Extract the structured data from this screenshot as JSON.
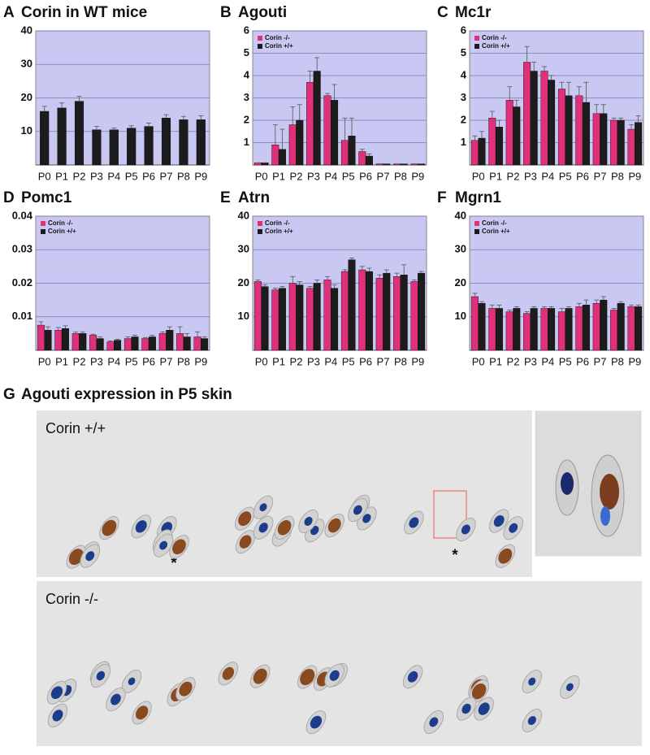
{
  "chart_data": [
    {
      "type": "bar",
      "panel": "A",
      "title": "Corin in WT mice",
      "categories": [
        "P0",
        "P1",
        "P2",
        "P3",
        "P4",
        "P5",
        "P6",
        "P7",
        "P8",
        "P9"
      ],
      "series": [
        {
          "color": "#1c1c1c",
          "values": [
            16,
            17,
            19,
            10.5,
            10.5,
            11,
            11.5,
            14,
            13.5,
            13.5
          ],
          "errors": [
            1.5,
            1.5,
            1.5,
            1,
            0.5,
            0.7,
            1,
            1,
            1,
            1.2
          ]
        }
      ],
      "ylim": [
        0,
        40
      ],
      "yticks": [
        10,
        20,
        30,
        40
      ],
      "grid": true
    },
    {
      "type": "bar",
      "panel": "B",
      "title": "Agouti",
      "categories": [
        "P0",
        "P1",
        "P2",
        "P3",
        "P4",
        "P5",
        "P6",
        "P7",
        "P8",
        "P9"
      ],
      "series": [
        {
          "name": "Corin -/-",
          "color": "#e0307a",
          "values": [
            0.1,
            0.9,
            1.8,
            3.7,
            3.1,
            1.1,
            0.6,
            0.05,
            0.05,
            0.05
          ],
          "errors": [
            0,
            0.9,
            0.8,
            0.5,
            0.1,
            1.0,
            0.1,
            0,
            0,
            0
          ]
        },
        {
          "name": "Corin +/+",
          "color": "#1c1c1c",
          "values": [
            0.1,
            0.7,
            2.0,
            4.2,
            2.9,
            1.3,
            0.4,
            0.05,
            0.05,
            0.05
          ],
          "errors": [
            0,
            0.9,
            0.7,
            0.6,
            0.7,
            0.8,
            0.1,
            0,
            0,
            0
          ]
        }
      ],
      "ylim": [
        0,
        6
      ],
      "yticks": [
        1,
        2,
        3,
        4,
        5,
        6
      ],
      "grid": true,
      "legend": "top-left"
    },
    {
      "type": "bar",
      "panel": "C",
      "title": "Mc1r",
      "categories": [
        "P0",
        "P1",
        "P2",
        "P3",
        "P4",
        "P5",
        "P6",
        "P7",
        "P8",
        "P9"
      ],
      "series": [
        {
          "name": "Corin -/-",
          "color": "#e0307a",
          "values": [
            1.1,
            2.1,
            2.9,
            4.6,
            4.2,
            3.4,
            3.1,
            2.3,
            2.0,
            1.6
          ],
          "errors": [
            0.2,
            0.3,
            0.6,
            0.7,
            0.2,
            0.3,
            0.4,
            0.4,
            0.1,
            0.2
          ]
        },
        {
          "name": "Corin +/+",
          "color": "#1c1c1c",
          "values": [
            1.2,
            1.7,
            2.6,
            4.2,
            3.8,
            3.1,
            2.8,
            2.3,
            2.0,
            1.9
          ],
          "errors": [
            0.3,
            0.3,
            0.3,
            0.4,
            0.2,
            0.6,
            0.9,
            0.4,
            0.1,
            0.3
          ]
        }
      ],
      "ylim": [
        0,
        6
      ],
      "yticks": [
        1,
        2,
        3,
        4,
        5,
        6
      ],
      "grid": true,
      "legend": "top-left"
    },
    {
      "type": "bar",
      "panel": "D",
      "title": "Pomc1",
      "categories": [
        "P0",
        "P1",
        "P2",
        "P3",
        "P4",
        "P5",
        "P6",
        "P7",
        "P8",
        "P9"
      ],
      "series": [
        {
          "name": "Corin -/-",
          "color": "#e0307a",
          "values": [
            0.0075,
            0.006,
            0.005,
            0.0045,
            0.0025,
            0.0035,
            0.0035,
            0.005,
            0.005,
            0.004
          ],
          "errors": [
            0.001,
            0.0008,
            0.0005,
            0.0003,
            0.0003,
            0.0005,
            0.0003,
            0.0005,
            0.002,
            0.0015
          ]
        },
        {
          "name": "Corin +/+",
          "color": "#1c1c1c",
          "values": [
            0.006,
            0.0065,
            0.005,
            0.0035,
            0.003,
            0.004,
            0.004,
            0.006,
            0.004,
            0.0035
          ],
          "errors": [
            0.001,
            0.0008,
            0.0005,
            0.0005,
            0.0003,
            0.0005,
            0.0005,
            0.001,
            0.001,
            0.0005
          ]
        }
      ],
      "ylim": [
        0,
        0.04
      ],
      "yticks": [
        0.01,
        0.02,
        0.03,
        0.04
      ],
      "grid": true,
      "legend": "top-left"
    },
    {
      "type": "bar",
      "panel": "E",
      "title": "Atrn",
      "categories": [
        "P0",
        "P1",
        "P2",
        "P3",
        "P4",
        "P5",
        "P6",
        "P7",
        "P8",
        "P9"
      ],
      "series": [
        {
          "name": "Corin -/-",
          "color": "#e0307a",
          "values": [
            20.5,
            18,
            20,
            18.5,
            21,
            23.5,
            24,
            21.5,
            22,
            20.5
          ],
          "errors": [
            0.5,
            0.5,
            2,
            0.5,
            1,
            0.5,
            1,
            1,
            1,
            0.5
          ]
        },
        {
          "name": "Corin +/+",
          "color": "#1c1c1c",
          "values": [
            19,
            18.5,
            19.5,
            20,
            18.5,
            27,
            23.5,
            23,
            22.5,
            23
          ],
          "errors": [
            0.5,
            0.5,
            1,
            1,
            1,
            0.5,
            1,
            1,
            3,
            0.5
          ]
        }
      ],
      "ylim": [
        0,
        40
      ],
      "yticks": [
        10,
        20,
        30,
        40
      ],
      "grid": true,
      "legend": "top-left"
    },
    {
      "type": "bar",
      "panel": "F",
      "title": "Mgrn1",
      "categories": [
        "P0",
        "P1",
        "P2",
        "P3",
        "P4",
        "P5",
        "P6",
        "P7",
        "P8",
        "P9"
      ],
      "series": [
        {
          "name": "Corin -/-",
          "color": "#e0307a",
          "values": [
            16,
            12.5,
            11.5,
            11,
            12.5,
            11.5,
            13,
            14,
            12,
            13
          ],
          "errors": [
            1,
            1,
            0.5,
            0.5,
            0.5,
            1,
            1,
            1,
            0.5,
            0.5
          ]
        },
        {
          "name": "Corin +/+",
          "color": "#1c1c1c",
          "values": [
            14,
            12.5,
            12.5,
            12.5,
            12.5,
            12.5,
            13.5,
            15,
            14,
            13
          ],
          "errors": [
            0.5,
            1,
            0.5,
            0.5,
            0.5,
            0.5,
            1.5,
            1,
            0.5,
            0.5
          ]
        }
      ],
      "ylim": [
        0,
        40
      ],
      "yticks": [
        10,
        20,
        30,
        40
      ],
      "grid": true,
      "legend": "top-left"
    }
  ],
  "panel_g": {
    "panel": "G",
    "title": "Agouti expression in P5 skin",
    "images": [
      {
        "label": "Corin +/+",
        "markers": [
          "*",
          "*"
        ]
      },
      {
        "label": "Corin -/-"
      }
    ]
  }
}
